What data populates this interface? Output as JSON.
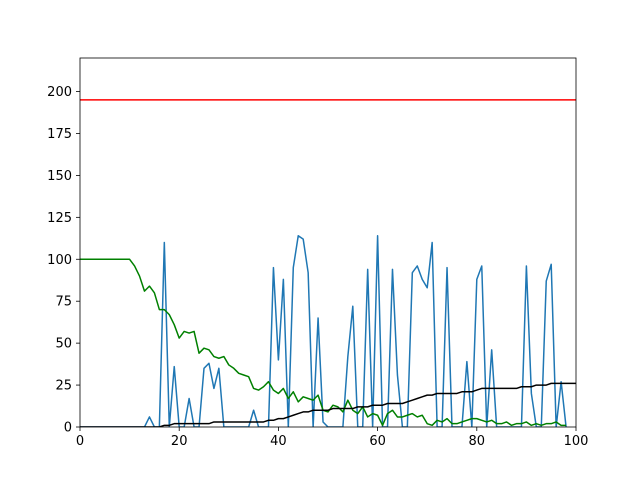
{
  "chart_data": {
    "type": "line",
    "title": "",
    "xlabel": "",
    "ylabel": "",
    "xlim": [
      0,
      100
    ],
    "ylim": [
      0,
      220
    ],
    "xticks": [
      0,
      20,
      40,
      60,
      80,
      100
    ],
    "yticks": [
      0,
      25,
      50,
      75,
      100,
      125,
      150,
      175,
      200
    ],
    "grid": false,
    "legend": "none",
    "hline": {
      "y": 195,
      "color": "#ff0000"
    },
    "series": [
      {
        "color": "#1f77b4",
        "x": [
          0,
          1,
          2,
          3,
          4,
          5,
          6,
          7,
          8,
          9,
          10,
          11,
          12,
          13,
          14,
          15,
          16,
          17,
          18,
          19,
          20,
          21,
          22,
          23,
          24,
          25,
          26,
          27,
          28,
          29,
          30,
          31,
          32,
          33,
          34,
          35,
          36,
          37,
          38,
          39,
          40,
          41,
          42,
          43,
          44,
          45,
          46,
          47,
          48,
          49,
          50,
          51,
          52,
          53,
          54,
          55,
          56,
          57,
          58,
          59,
          60,
          61,
          62,
          63,
          64,
          65,
          66,
          67,
          68,
          69,
          70,
          71,
          72,
          73,
          74,
          75,
          76,
          77,
          78,
          79,
          80,
          81,
          82,
          83,
          84,
          85,
          86,
          87,
          88,
          89,
          90,
          91,
          92,
          93,
          94,
          95,
          96,
          97,
          98
        ],
        "y": [
          0,
          0,
          0,
          0,
          0,
          0,
          0,
          0,
          0,
          0,
          0,
          0,
          0,
          0,
          6,
          0,
          0,
          110,
          0,
          36,
          0,
          0,
          17,
          0,
          0,
          35,
          38,
          23,
          35,
          0,
          0,
          0,
          0,
          0,
          0,
          10,
          0,
          0,
          0,
          95,
          40,
          88,
          0,
          95,
          114,
          112,
          92,
          0,
          65,
          3,
          0,
          0,
          0,
          0,
          42,
          72,
          0,
          0,
          94,
          0,
          114,
          0,
          0,
          94,
          31,
          0,
          0,
          92,
          96,
          88,
          83,
          110,
          0,
          0,
          95,
          0,
          0,
          0,
          39,
          0,
          88,
          96,
          0,
          46,
          0,
          0,
          0,
          0,
          0,
          0,
          96,
          20,
          0,
          0,
          87,
          97,
          0,
          27,
          0
        ]
      },
      {
        "color": "#008000",
        "x": [
          0,
          1,
          2,
          3,
          4,
          5,
          6,
          7,
          8,
          9,
          10,
          11,
          12,
          13,
          14,
          15,
          16,
          17,
          18,
          19,
          20,
          21,
          22,
          23,
          24,
          25,
          26,
          27,
          28,
          29,
          30,
          31,
          32,
          33,
          34,
          35,
          36,
          37,
          38,
          39,
          40,
          41,
          42,
          43,
          44,
          45,
          46,
          47,
          48,
          49,
          50,
          51,
          52,
          53,
          54,
          55,
          56,
          57,
          58,
          59,
          60,
          61,
          62,
          63,
          64,
          65,
          66,
          67,
          68,
          69,
          70,
          71,
          72,
          73,
          74,
          75,
          76,
          77,
          78,
          79,
          80,
          81,
          82,
          83,
          84,
          85,
          86,
          87,
          88,
          89,
          90,
          91,
          92,
          93,
          94,
          95,
          96,
          97,
          98
        ],
        "y": [
          100,
          100,
          100,
          100,
          100,
          100,
          100,
          100,
          100,
          100,
          100,
          96,
          90,
          81,
          84,
          80,
          70,
          70,
          67,
          61,
          53,
          57,
          56,
          57,
          44,
          47,
          46,
          42,
          41,
          42,
          37,
          35,
          32,
          31,
          30,
          23,
          22,
          24,
          27,
          22,
          20,
          23,
          17,
          21,
          15,
          18,
          17,
          16,
          19,
          10,
          9,
          13,
          12,
          9,
          16,
          10,
          8,
          12,
          6,
          8,
          7,
          1,
          8,
          10,
          6,
          6,
          7,
          8,
          6,
          7,
          2,
          1,
          4,
          3,
          5,
          2,
          2,
          3,
          4,
          5,
          5,
          4,
          3,
          4,
          2,
          2,
          3,
          1,
          2,
          2,
          3,
          1,
          2,
          1,
          2,
          2,
          3,
          1,
          1
        ]
      },
      {
        "color": "#000000",
        "x": [
          0,
          1,
          2,
          3,
          4,
          5,
          6,
          7,
          8,
          9,
          10,
          11,
          12,
          13,
          14,
          15,
          16,
          17,
          18,
          19,
          20,
          21,
          22,
          23,
          24,
          25,
          26,
          27,
          28,
          29,
          30,
          31,
          32,
          33,
          34,
          35,
          36,
          37,
          38,
          39,
          40,
          41,
          42,
          43,
          44,
          45,
          46,
          47,
          48,
          49,
          50,
          51,
          52,
          53,
          54,
          55,
          56,
          57,
          58,
          59,
          60,
          61,
          62,
          63,
          64,
          65,
          66,
          67,
          68,
          69,
          70,
          71,
          72,
          73,
          74,
          75,
          76,
          77,
          78,
          79,
          80,
          81,
          82,
          83,
          84,
          85,
          86,
          87,
          88,
          89,
          90,
          91,
          92,
          93,
          94,
          95,
          96,
          97,
          98,
          99,
          100
        ],
        "y": [
          0,
          0,
          0,
          0,
          0,
          0,
          0,
          0,
          0,
          0,
          0,
          0,
          0,
          0,
          0,
          0,
          0,
          1,
          1,
          2,
          2,
          2,
          2,
          2,
          2,
          2,
          2,
          3,
          3,
          3,
          3,
          3,
          3,
          3,
          3,
          3,
          3,
          3,
          4,
          4,
          5,
          5,
          6,
          7,
          8,
          9,
          9,
          10,
          10,
          10,
          10,
          11,
          11,
          11,
          11,
          11,
          12,
          12,
          12,
          13,
          13,
          13,
          14,
          14,
          14,
          14,
          15,
          16,
          17,
          18,
          19,
          19,
          20,
          20,
          20,
          20,
          20,
          21,
          21,
          21,
          22,
          23,
          23,
          23,
          23,
          23,
          23,
          23,
          23,
          24,
          24,
          24,
          25,
          25,
          25,
          26,
          26,
          26,
          26,
          26,
          26
        ]
      }
    ]
  }
}
